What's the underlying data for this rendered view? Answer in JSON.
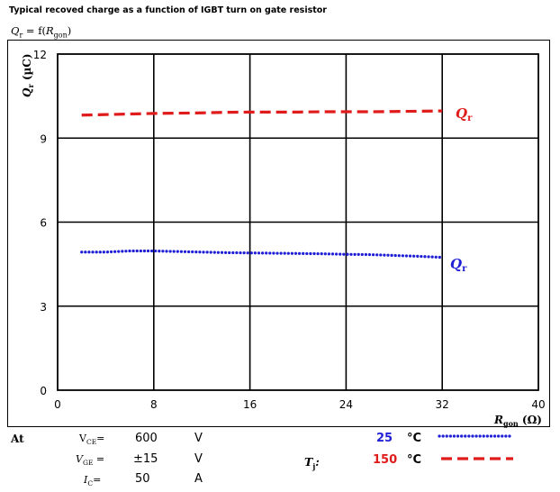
{
  "header": {
    "title": "Typical recoved charge as a function of IGBT turn on gate resistor",
    "formula_left": "Q",
    "formula_left_sub": "r",
    "formula_eq": " = f(",
    "formula_var": "R",
    "formula_var_sub": "gon",
    "formula_close": ")"
  },
  "chart_data": {
    "type": "line",
    "ylabel": "Qr (µC)",
    "xlabel": "Rgon (Ω)",
    "xlim": [
      0,
      40
    ],
    "ylim": [
      0,
      12
    ],
    "x_ticks": [
      "0",
      "8",
      "16",
      "24",
      "32",
      "40"
    ],
    "y_ticks": [
      "0",
      "3",
      "6",
      "9",
      "12"
    ],
    "grid": true,
    "series": [
      {
        "name": "25 °C",
        "label": "Qr",
        "color": "#1f1fd6",
        "style": "dotted",
        "x": [
          2,
          4,
          6,
          8,
          10,
          12,
          14,
          16,
          18,
          20,
          22,
          24,
          26,
          28,
          30,
          32
        ],
        "y": [
          4.93,
          4.93,
          4.97,
          4.97,
          4.95,
          4.93,
          4.91,
          4.9,
          4.89,
          4.88,
          4.87,
          4.85,
          4.84,
          4.81,
          4.78,
          4.74
        ]
      },
      {
        "name": "150 °C",
        "label": "Qr",
        "color": "#e01b1b",
        "style": "dashed",
        "x": [
          2,
          4,
          6,
          8,
          10,
          12,
          14,
          16,
          18,
          20,
          22,
          24,
          26,
          28,
          30,
          32
        ],
        "y": [
          9.82,
          9.84,
          9.86,
          9.88,
          9.89,
          9.9,
          9.92,
          9.93,
          9.93,
          9.93,
          9.94,
          9.94,
          9.94,
          9.95,
          9.96,
          9.97
        ]
      }
    ]
  },
  "axis_labels": {
    "y_label_main": "Q",
    "y_label_sub": "r",
    "y_label_unit": " (µC)",
    "x_label_main": "R",
    "x_label_sub": "gon",
    "x_label_unit": " (Ω)"
  },
  "series_labels": {
    "upper_main": "Q",
    "upper_sub": "r",
    "lower_main": "Q",
    "lower_sub": "r"
  },
  "conditions": {
    "at_label": "At",
    "vce_label": "V",
    "vce_sub": "CE",
    "vce_eq": "=",
    "vce_value": "600",
    "vce_unit": "V",
    "vge_label": "V",
    "vge_sub": "GE",
    "vge_eq": " =",
    "vge_value": "±15",
    "vge_unit": "V",
    "ic_label": "I",
    "ic_sub": "C",
    "ic_eq": "=",
    "ic_value": "50",
    "ic_unit": "A",
    "tj_label": "T",
    "tj_sub": "j",
    "tj_colon": ":",
    "temp1_value": "25",
    "temp1_unit": "°C",
    "temp1_color": "#1f1fd6",
    "temp2_value": "150",
    "temp2_unit": "°C",
    "temp2_color": "#e01b1b"
  }
}
